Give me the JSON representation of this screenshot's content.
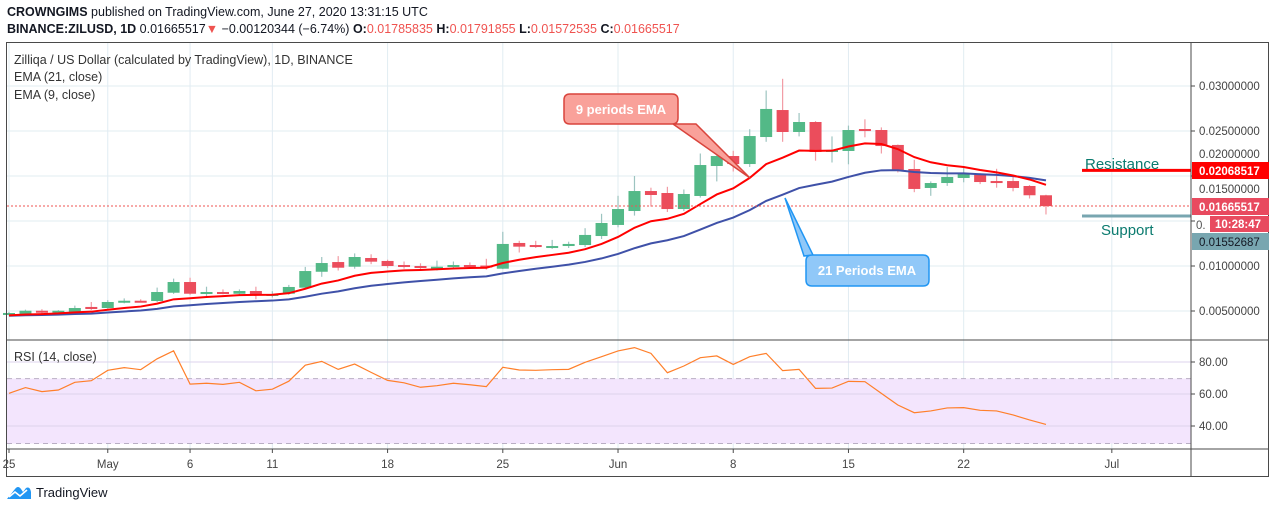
{
  "header": {
    "author": "CROWNGIMS",
    "published": "published on TradingView.com, June 27, 2020 13:31:15 UTC",
    "symbol": "BINANCE:ZILUSD, 1D",
    "last": "0.01665517",
    "change": "−0.00120344 (−6.74%)",
    "o_label": "O:",
    "o": "0.01785835",
    "h_label": "H:",
    "h": "0.01791855",
    "l_label": "L:",
    "l": "0.01572535",
    "c_label": "C:",
    "c": "0.01665517"
  },
  "legend": {
    "title": "Zilliqa / US Dollar (calculated by TradingView), 1D, BINANCE",
    "ema21": "EMA (21, close)",
    "ema9": "EMA (9, close)",
    "rsi": "RSI (14, close)"
  },
  "annotations": {
    "ema9_callout": "9 periods EMA",
    "ema21_callout": "21 Periods EMA",
    "resistance": "Resistance",
    "support": "Support"
  },
  "price_labels": {
    "resistance": "0.02068517",
    "last": "0.01665517",
    "countdown": "10:28:47",
    "support": "0.01552687",
    "hidden_partial": "0."
  },
  "footer": {
    "brand": "TradingView"
  },
  "colors": {
    "up": "#53b987",
    "down": "#eb4d5c",
    "ema9": "#ff0000",
    "ema21": "#3f51a8",
    "rsi": "#ff7f2a",
    "rsi_band": "#f3e5fd",
    "support": "#78a6b0",
    "resistance": "#ff0000",
    "text_teal": "#0b7b6f"
  },
  "chart_data": [
    {
      "type": "candlestick",
      "title": "Zilliqa / US Dollar, 1D, BINANCE",
      "start_date": "2020-04-25",
      "x_ticks": [
        {
          "label": "25",
          "day": 0
        },
        {
          "label": "May",
          "day": 6
        },
        {
          "label": "6",
          "day": 11
        },
        {
          "label": "11",
          "day": 16
        },
        {
          "label": "18",
          "day": 23
        },
        {
          "label": "25",
          "day": 30
        },
        {
          "label": "Jun",
          "day": 37
        },
        {
          "label": "8",
          "day": 44
        },
        {
          "label": "15",
          "day": 51
        },
        {
          "label": "22",
          "day": 58
        },
        {
          "label": "Jul",
          "day": 67
        }
      ],
      "y_ticks": [
        "0.03000000",
        "0.02500000",
        "0.02000000",
        "0.01500000",
        "0.01000000",
        "0.00500000"
      ],
      "y_tick_values": [
        0.03,
        0.025,
        0.02,
        0.015,
        0.01,
        0.005
      ],
      "ylim": [
        0.0017,
        0.0322
      ],
      "ohlc_fields": [
        "open",
        "high",
        "low",
        "close"
      ],
      "candles": [
        [
          0.00456,
          0.0049,
          0.0045,
          0.00478
        ],
        [
          0.00459,
          0.00515,
          0.00455,
          0.00503
        ],
        [
          0.00503,
          0.0052,
          0.0047,
          0.00481
        ],
        [
          0.00481,
          0.0051,
          0.00475,
          0.00503
        ],
        [
          0.00489,
          0.0056,
          0.00475,
          0.00533
        ],
        [
          0.00545,
          0.006,
          0.0051,
          0.00522
        ],
        [
          0.00533,
          0.0062,
          0.00525,
          0.006
        ],
        [
          0.00592,
          0.0064,
          0.00585,
          0.00614
        ],
        [
          0.00614,
          0.0063,
          0.006,
          0.00611
        ],
        [
          0.00611,
          0.0076,
          0.006,
          0.00711
        ],
        [
          0.00703,
          0.0086,
          0.0069,
          0.00822
        ],
        [
          0.00822,
          0.0087,
          0.0068,
          0.00692
        ],
        [
          0.00692,
          0.0077,
          0.0066,
          0.00711
        ],
        [
          0.00711,
          0.0074,
          0.00685,
          0.007
        ],
        [
          0.00692,
          0.0074,
          0.0068,
          0.00722
        ],
        [
          0.00722,
          0.0077,
          0.0063,
          0.00689
        ],
        [
          0.00667,
          0.0072,
          0.0065,
          0.00689
        ],
        [
          0.00692,
          0.0079,
          0.0068,
          0.00767
        ],
        [
          0.00759,
          0.0099,
          0.0075,
          0.00944
        ],
        [
          0.00936,
          0.011,
          0.0088,
          0.01033
        ],
        [
          0.01044,
          0.0111,
          0.0095,
          0.00981
        ],
        [
          0.00992,
          0.0114,
          0.0097,
          0.011
        ],
        [
          0.01089,
          0.0113,
          0.0102,
          0.01048
        ],
        [
          0.01056,
          0.0107,
          0.0098,
          0.01
        ],
        [
          0.01011,
          0.0105,
          0.0097,
          0.01
        ],
        [
          0.01,
          0.0103,
          0.0096,
          0.00978
        ],
        [
          0.00978,
          0.0106,
          0.0095,
          0.00992
        ],
        [
          0.01,
          0.0105,
          0.0098,
          0.01011
        ],
        [
          0.01011,
          0.0104,
          0.00985,
          0.01
        ],
        [
          0.01005,
          0.0108,
          0.0096,
          0.0099
        ],
        [
          0.0097,
          0.0138,
          0.00965,
          0.01245
        ],
        [
          0.01256,
          0.0128,
          0.0115,
          0.01215
        ],
        [
          0.01233,
          0.0128,
          0.012,
          0.01211
        ],
        [
          0.01211,
          0.0129,
          0.0119,
          0.01222
        ],
        [
          0.01222,
          0.0127,
          0.012,
          0.01245
        ],
        [
          0.01233,
          0.0142,
          0.0121,
          0.01345
        ],
        [
          0.01333,
          0.0158,
          0.013,
          0.01478
        ],
        [
          0.01456,
          0.0178,
          0.0143,
          0.01633
        ],
        [
          0.01611,
          0.02,
          0.0156,
          0.01833
        ],
        [
          0.01833,
          0.0187,
          0.0166,
          0.01789
        ],
        [
          0.01811,
          0.0188,
          0.016,
          0.01633
        ],
        [
          0.01633,
          0.0185,
          0.0161,
          0.018
        ],
        [
          0.01778,
          0.0225,
          0.0176,
          0.02122
        ],
        [
          0.02111,
          0.0231,
          0.0194,
          0.02222
        ],
        [
          0.02222,
          0.0228,
          0.0205,
          0.02133
        ],
        [
          0.02133,
          0.0252,
          0.021,
          0.02444
        ],
        [
          0.02433,
          0.0295,
          0.0238,
          0.02745
        ],
        [
          0.02733,
          0.0308,
          0.0238,
          0.02489
        ],
        [
          0.02489,
          0.027,
          0.0244,
          0.026
        ],
        [
          0.026,
          0.0261,
          0.0217,
          0.02267
        ],
        [
          0.02267,
          0.0244,
          0.0215,
          0.02289
        ],
        [
          0.02278,
          0.0256,
          0.0213,
          0.02511
        ],
        [
          0.02522,
          0.0263,
          0.0243,
          0.025
        ],
        [
          0.02511,
          0.0254,
          0.0225,
          0.02333
        ],
        [
          0.02345,
          0.0235,
          0.0204,
          0.02067
        ],
        [
          0.02078,
          0.0218,
          0.0182,
          0.01856
        ],
        [
          0.01867,
          0.0194,
          0.0178,
          0.01922
        ],
        [
          0.01922,
          0.021,
          0.0189,
          0.01989
        ],
        [
          0.01978,
          0.0211,
          0.0193,
          0.02022
        ],
        [
          0.02022,
          0.0203,
          0.0191,
          0.01933
        ],
        [
          0.01944,
          0.0208,
          0.0187,
          0.01933
        ],
        [
          0.01944,
          0.02,
          0.0183,
          0.01867
        ],
        [
          0.01889,
          0.019,
          0.0175,
          0.01786
        ],
        [
          0.01785835,
          0.01791855,
          0.01572535,
          0.01665517
        ]
      ],
      "ema_periods": [
        9,
        21
      ],
      "levels": {
        "resistance": 0.02068517,
        "support": 0.01552687,
        "last": 0.01665517
      }
    },
    {
      "type": "line",
      "title": "RSI (14, close)",
      "ylim": [
        26,
        93
      ],
      "y_ticks": [
        "80.00",
        "60.00",
        "40.00"
      ],
      "y_tick_values": [
        80,
        60,
        40
      ],
      "band": [
        30,
        70
      ],
      "values": [
        60.4,
        64,
        61.5,
        62.5,
        67.3,
        68.3,
        74.8,
        76.5,
        75.2,
        82,
        87,
        66.2,
        66.7,
        66,
        67.3,
        62,
        63,
        68,
        78,
        80.4,
        75.4,
        78.7,
        73.5,
        68.5,
        67,
        64.2,
        65.2,
        66.7,
        65.8,
        64.6,
        76.7,
        75,
        74.8,
        75.2,
        75.4,
        79.8,
        83.3,
        86.9,
        89,
        85.4,
        73.3,
        77.5,
        82.7,
        83.8,
        78.5,
        83.3,
        85.4,
        74.6,
        75.4,
        63.5,
        63.7,
        67.9,
        67.7,
        60.4,
        53.1,
        48.3,
        49.4,
        51.3,
        51.5,
        49.8,
        49.4,
        46.9,
        43.8,
        41
      ]
    }
  ]
}
